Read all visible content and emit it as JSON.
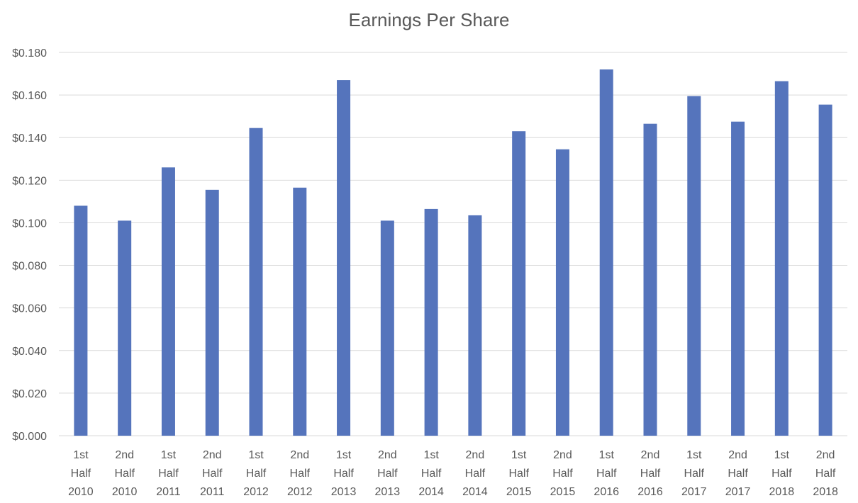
{
  "chart_data": {
    "type": "bar",
    "title": "Earnings Per Share",
    "xlabel": "",
    "ylabel": "",
    "ylim": [
      0,
      0.18
    ],
    "yticks": [
      "$0.000",
      "$0.020",
      "$0.040",
      "$0.060",
      "$0.080",
      "$0.100",
      "$0.120",
      "$0.140",
      "$0.160",
      "$0.180"
    ],
    "ytick_values": [
      0,
      0.02,
      0.04,
      0.06,
      0.08,
      0.1,
      0.12,
      0.14,
      0.16,
      0.18
    ],
    "grid": true,
    "categories": [
      [
        "1st",
        "Half",
        "2010"
      ],
      [
        "2nd",
        "Half",
        "2010"
      ],
      [
        "1st",
        "Half",
        "2011"
      ],
      [
        "2nd",
        "Half",
        "2011"
      ],
      [
        "1st",
        "Half",
        "2012"
      ],
      [
        "2nd",
        "Half",
        "2012"
      ],
      [
        "1st",
        "Half",
        "2013"
      ],
      [
        "2nd",
        "Half",
        "2013"
      ],
      [
        "1st",
        "Half",
        "2014"
      ],
      [
        "2nd",
        "Half",
        "2014"
      ],
      [
        "1st",
        "Half",
        "2015"
      ],
      [
        "2nd",
        "Half",
        "2015"
      ],
      [
        "1st",
        "Half",
        "2016"
      ],
      [
        "2nd",
        "Half",
        "2016"
      ],
      [
        "1st",
        "Half",
        "2017"
      ],
      [
        "2nd",
        "Half",
        "2017"
      ],
      [
        "1st",
        "Half",
        "2018"
      ],
      [
        "2nd",
        "Half",
        "2018"
      ]
    ],
    "values": [
      0.108,
      0.101,
      0.126,
      0.1155,
      0.1445,
      0.1165,
      0.167,
      0.101,
      0.1065,
      0.1035,
      0.143,
      0.1345,
      0.172,
      0.1465,
      0.1595,
      0.1475,
      0.1665,
      0.1555
    ],
    "colors": {
      "bar": "#5574bc",
      "grid": "#d9d9d9",
      "text": "#595959"
    }
  }
}
